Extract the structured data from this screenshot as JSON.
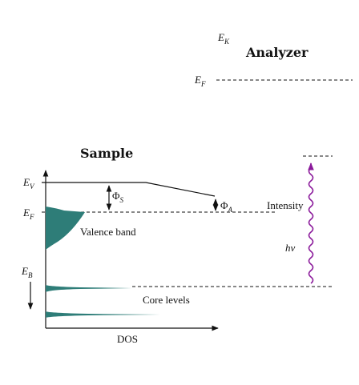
{
  "analyzer": {
    "kinetic_energy": {
      "symbol": "E",
      "subscript": "K"
    },
    "title": "Analyzer",
    "fermi_level": {
      "symbol": "E",
      "subscript": "F"
    }
  },
  "sample": {
    "title": "Sample",
    "vacuum_level": {
      "symbol": "E",
      "subscript": "V"
    },
    "fermi_level": {
      "symbol": "E",
      "subscript": "F"
    },
    "binding_energy": {
      "symbol": "E",
      "subscript": "B"
    },
    "valence_band": "Valence band",
    "core_levels": "Core levels",
    "x_axis": "DOS"
  },
  "work_functions": {
    "sample": {
      "symbol": "Φ",
      "subscript": "S"
    },
    "analyzer": {
      "symbol": "Φ",
      "subscript": "A"
    }
  },
  "photon": {
    "label": "hν"
  },
  "intensity": "Intensity"
}
